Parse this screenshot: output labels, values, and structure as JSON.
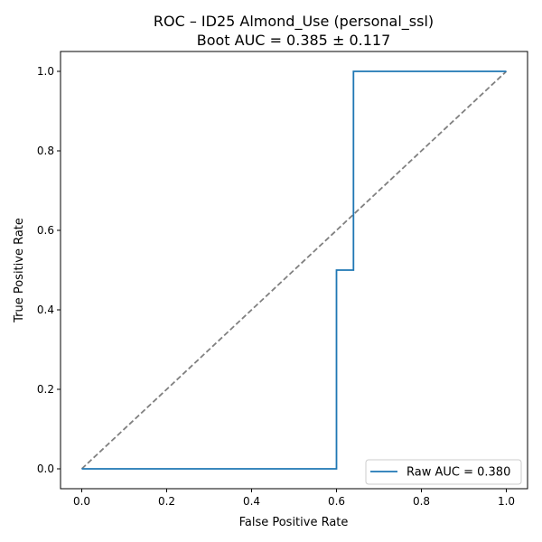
{
  "chart_data": {
    "type": "line",
    "title": "ROC – ID25 Almond_Use (personal_ssl)",
    "subtitle": "Boot AUC = 0.385 ± 0.117",
    "xlabel": "False Positive Rate",
    "ylabel": "True Positive Rate",
    "xlim": [
      -0.05,
      1.05
    ],
    "ylim": [
      -0.05,
      1.05
    ],
    "xticks": [
      "0.0",
      "0.2",
      "0.4",
      "0.6",
      "0.8",
      "1.0"
    ],
    "yticks": [
      "0.0",
      "0.2",
      "0.4",
      "0.6",
      "0.8",
      "1.0"
    ],
    "grid": false,
    "legend_position": "lower-right",
    "series": [
      {
        "name": "Raw AUC = 0.380",
        "color": "#1f77b4",
        "style": "solid",
        "x": [
          0.0,
          0.6,
          0.6,
          0.64,
          0.64,
          1.0
        ],
        "y": [
          0.0,
          0.0,
          0.5,
          0.5,
          1.0,
          1.0
        ]
      },
      {
        "color": "#808080",
        "style": "dashed",
        "x": [
          0.0,
          1.0
        ],
        "y": [
          0.0,
          1.0
        ]
      }
    ]
  }
}
